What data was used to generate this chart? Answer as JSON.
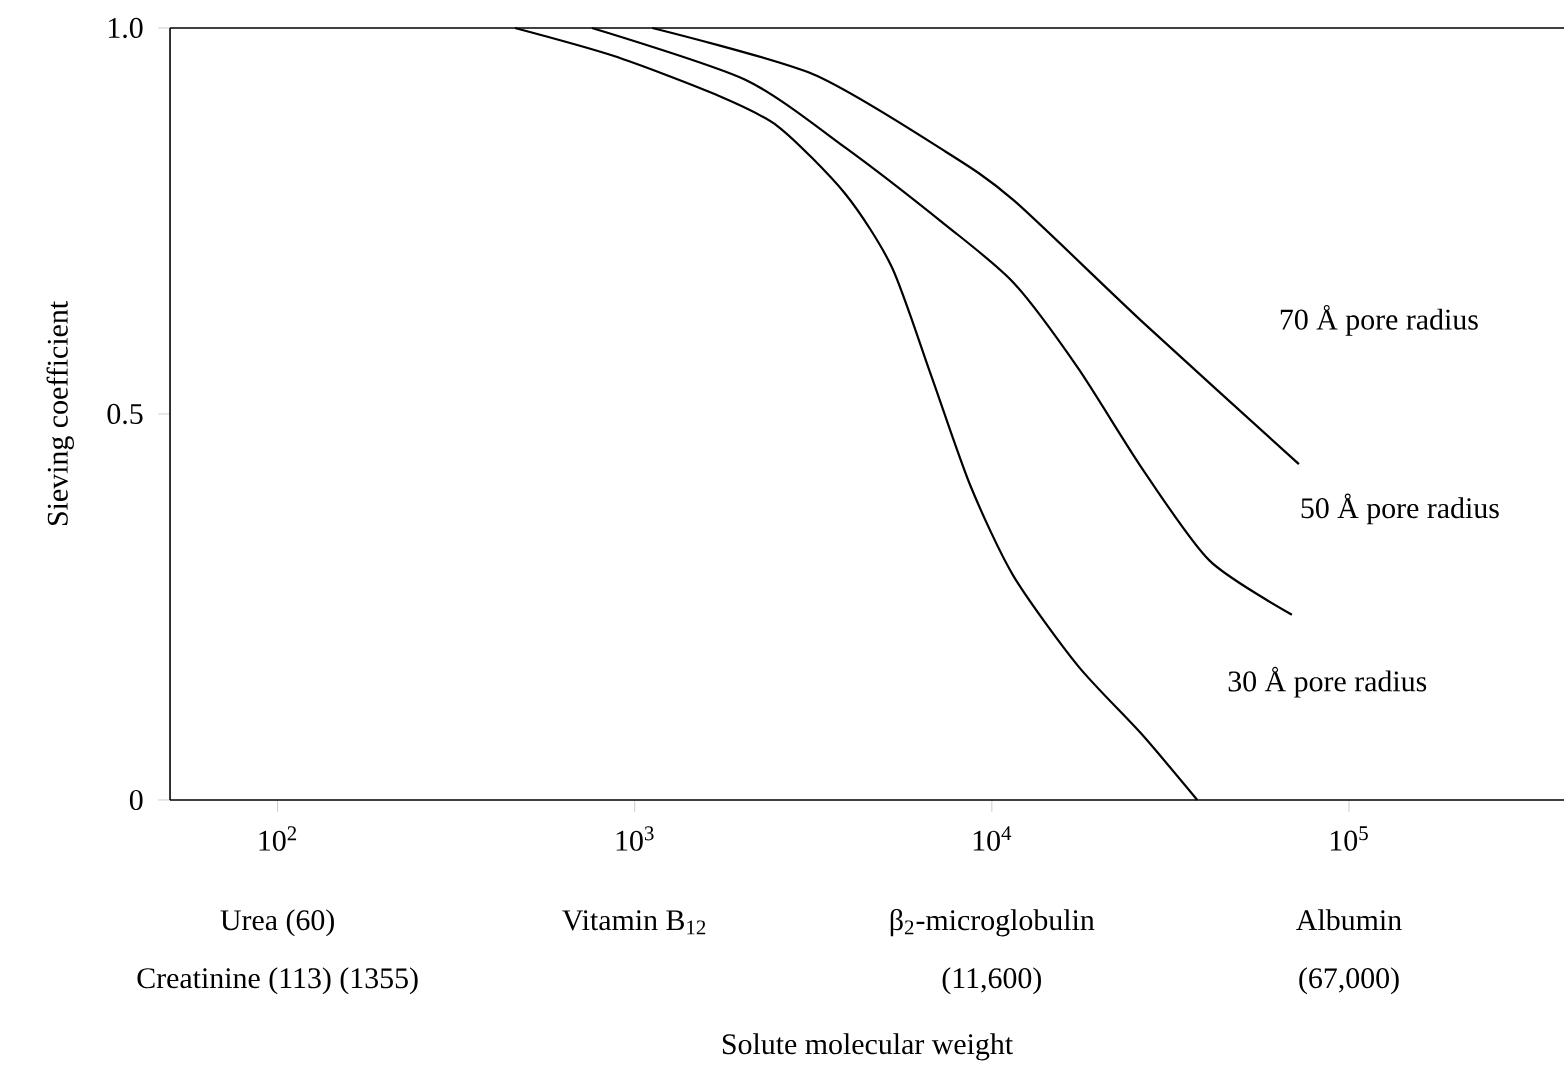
{
  "chart_data": {
    "type": "line",
    "ylabel": "Sieving coefficient",
    "log": "x",
    "xlim": [
      50,
      400000
    ],
    "ylim": [
      0,
      1
    ],
    "xticks": [
      {
        "value": 100,
        "label": "10$^{2}$"
      },
      {
        "value": 1000,
        "label": "10$^{3}$"
      },
      {
        "value": 10000,
        "label": "10$^{4}$"
      },
      {
        "value": 100000,
        "label": "10$^{5}$"
      }
    ],
    "yticks": [
      0,
      0.5,
      {
        "value": 1,
        "label": "1.0"
      }
    ],
    "series": [
      {
        "name": "70 Å pore radius",
        "color": "#000000",
        "x": [
          1120,
          3160,
          7410,
          11500,
          26300,
          72400
        ],
        "values": [
          1.0,
          0.94,
          0.84,
          0.777,
          0.62,
          0.435
        ]
      },
      {
        "name": "50 Å pore radius",
        "color": "#000000",
        "x": [
          759,
          2040,
          3890,
          7410,
          11500,
          17400,
          26300,
          40700,
          69200
        ],
        "values": [
          1.0,
          0.933,
          0.845,
          0.745,
          0.67,
          0.56,
          0.43,
          0.31,
          0.24
        ]
      },
      {
        "name": "30 Å pore radius",
        "color": "#000000",
        "x": [
          462,
          871,
          1660,
          2510,
          3890,
          5250,
          6760,
          8710,
          11500,
          17400,
          26300,
          37600
        ],
        "values": [
          1.0,
          0.964,
          0.915,
          0.873,
          0.785,
          0.69,
          0.55,
          0.407,
          0.29,
          0.174,
          0.085,
          0
        ]
      }
    ],
    "annotations": [
      "Urea (60)",
      "Creatinine (113) (1355)",
      "Vitamin B$_{12}$",
      "β$_{2}$-microglobulin",
      "(11,600)",
      "Albumin",
      "(67,000)",
      "Solute molecular weight"
    ]
  }
}
